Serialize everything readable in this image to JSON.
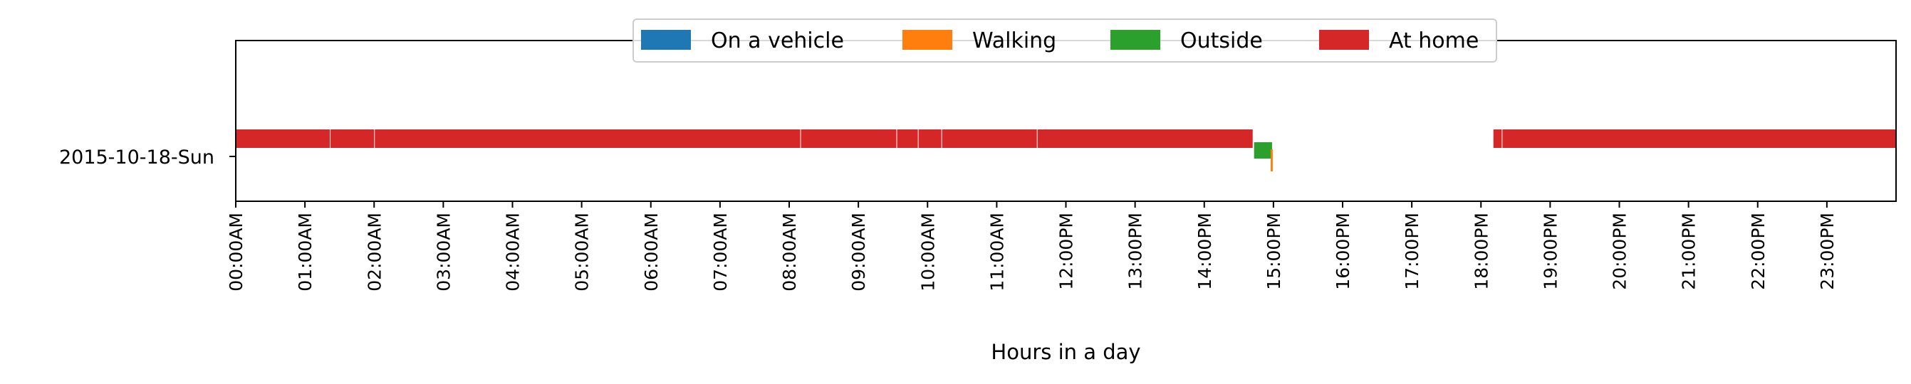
{
  "chart_data": {
    "type": "bar",
    "orientation": "horizontal",
    "xlabel": "Hours in a day",
    "x_units": "hours since 00:00",
    "xlim": [
      0,
      24
    ],
    "x_ticks": [
      0,
      1,
      2,
      3,
      4,
      5,
      6,
      7,
      8,
      9,
      10,
      11,
      12,
      13,
      14,
      15,
      16,
      17,
      18,
      19,
      20,
      21,
      22,
      23
    ],
    "x_tick_labels": [
      "00:00AM",
      "01:00AM",
      "02:00AM",
      "03:00AM",
      "04:00AM",
      "05:00AM",
      "06:00AM",
      "07:00AM",
      "08:00AM",
      "09:00AM",
      "10:00AM",
      "11:00AM",
      "12:00PM",
      "13:00PM",
      "14:00PM",
      "15:00PM",
      "16:00PM",
      "17:00PM",
      "18:00PM",
      "19:00PM",
      "20:00PM",
      "21:00PM",
      "22:00PM",
      "23:00PM"
    ],
    "categories": [
      "2015-10-18-Sun"
    ],
    "legend_position": "top-center",
    "grid": false,
    "series": [
      {
        "name": "On a vehicle",
        "color": "#1f77b4",
        "row": 0,
        "segments": []
      },
      {
        "name": "Walking",
        "color": "#ff7f0e",
        "row": 0,
        "segments": [
          [
            14.96,
            14.99
          ]
        ]
      },
      {
        "name": "Outside",
        "color": "#2ca02c",
        "row": 0,
        "segments": [
          [
            14.72,
            14.98
          ]
        ]
      },
      {
        "name": "At home",
        "color": "#d62728",
        "row": 0,
        "segments": [
          [
            0.0,
            1.36
          ],
          [
            1.37,
            2.0
          ],
          [
            2.01,
            8.16
          ],
          [
            8.17,
            9.55
          ],
          [
            9.56,
            9.86
          ],
          [
            9.87,
            10.2
          ],
          [
            10.21,
            11.58
          ],
          [
            11.59,
            14.7
          ],
          [
            18.18,
            18.3
          ],
          [
            18.31,
            24.0
          ]
        ]
      }
    ]
  }
}
